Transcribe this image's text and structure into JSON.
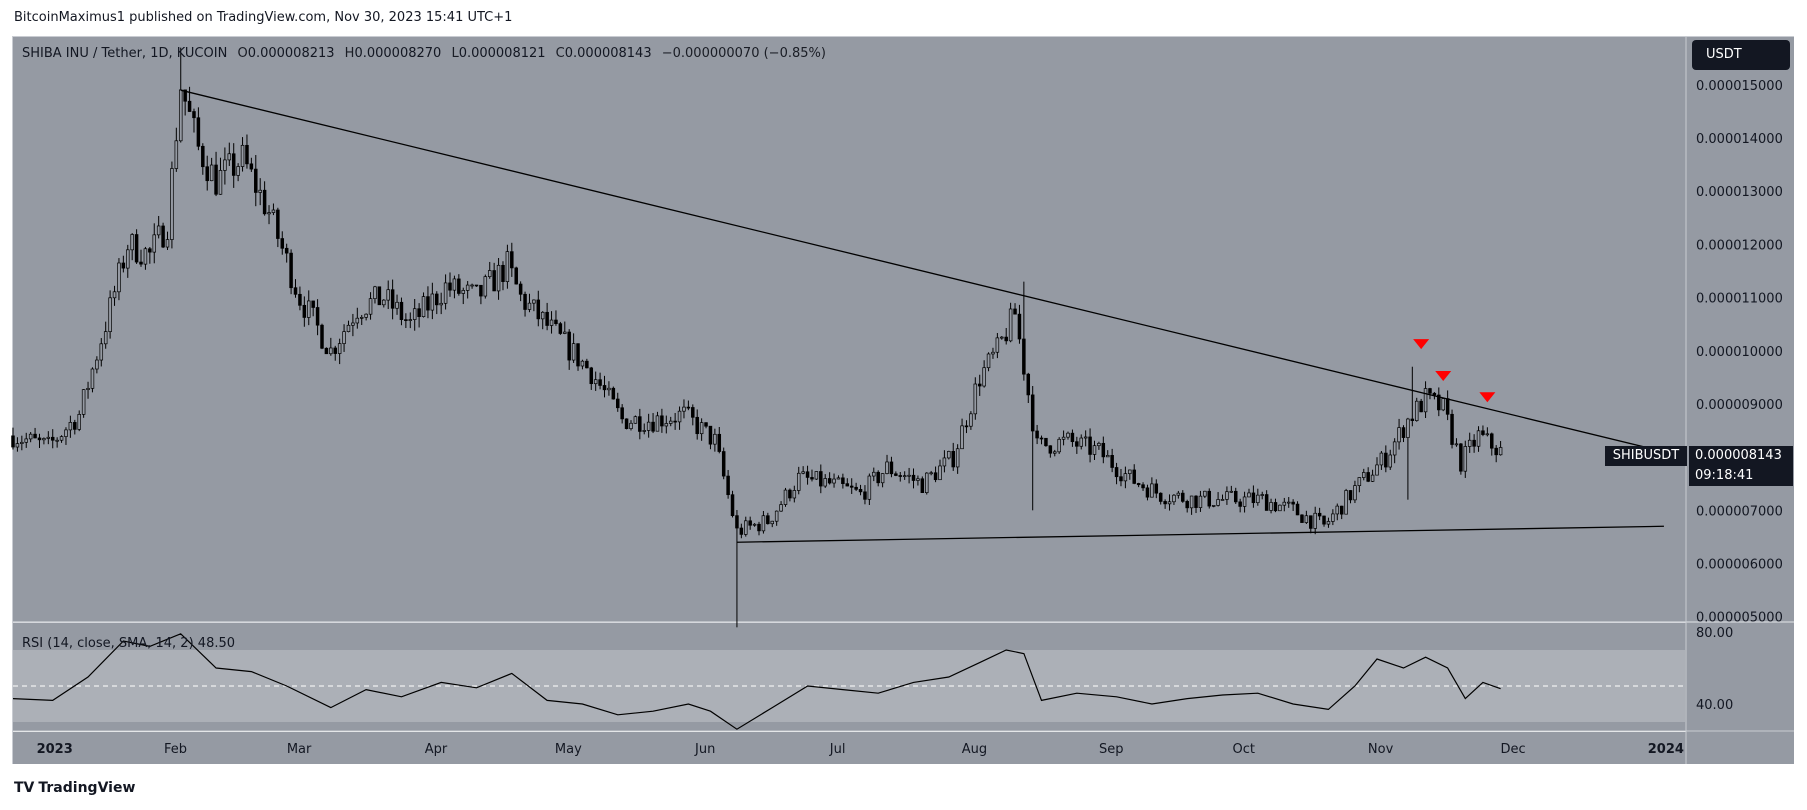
{
  "header": {
    "attribution": "BitcoinMaximus1 published on TradingView.com, Nov 30, 2023 15:41 UTC+1"
  },
  "legend": {
    "symbol": "SHIBA INU / Tether, 1D, KUCOIN",
    "open_label": "O",
    "open": "0.000008213",
    "high_label": "H",
    "high": "0.000008270",
    "low_label": "L",
    "low": "0.000008121",
    "close_label": "C",
    "close": "0.000008143",
    "change": "−0.000000070 (−0.85%)"
  },
  "currency_button": "USDT",
  "price_tag": {
    "symbol": "SHIBUSDT",
    "value": "0.000008143",
    "countdown": "09:18:41"
  },
  "rsi": {
    "label": "RSI (14, close, SMA, 14, 2)",
    "value": "48.50"
  },
  "footer": {
    "brand": "TradingView",
    "logo": "TV"
  },
  "colors": {
    "pane_bg": "#959aa3",
    "candle": "#000000",
    "marker": "#ff0000",
    "rsi_band": "#b0b4bb",
    "text": "#131722"
  },
  "chart_data": {
    "type": "candlestick",
    "title": "SHIBA INU / Tether, 1D, KUCOIN",
    "price_axis": {
      "ticks": [
        "0.000015000",
        "0.000014000",
        "0.000013000",
        "0.000012000",
        "0.000011000",
        "0.000010000",
        "0.000009000",
        "0.000008000",
        "0.000007000",
        "0.000006000",
        "0.000005000"
      ],
      "tick_values": [
        1.5e-05,
        1.4e-05,
        1.3e-05,
        1.2e-05,
        1.1e-05,
        1e-05,
        9e-06,
        8e-06,
        7e-06,
        6e-06,
        5e-06
      ],
      "range": [
        4.9e-06,
        1.59e-05
      ]
    },
    "time_axis": {
      "labels": [
        "2023",
        "Feb",
        "Mar",
        "Apr",
        "May",
        "Jun",
        "Jul",
        "Aug",
        "Sep",
        "Oct",
        "Nov",
        "Dec",
        "2024"
      ],
      "label_dates": [
        "2023-01-01",
        "2023-02-01",
        "2023-03-01",
        "2023-04-01",
        "2023-05-01",
        "2023-06-01",
        "2023-07-01",
        "2023-08-01",
        "2023-09-01",
        "2023-10-01",
        "2023-11-01",
        "2023-12-01",
        "2024-01-01"
      ],
      "range": [
        "2022-12-28",
        "2024-01-11"
      ]
    },
    "close_series": [
      [
        "2022-12-28",
        8.4e-06
      ],
      [
        "2023-01-05",
        8.2e-06
      ],
      [
        "2023-01-12",
        8.8e-06
      ],
      [
        "2023-01-18",
        1.05e-05
      ],
      [
        "2023-01-23",
        1.2e-05
      ],
      [
        "2023-01-28",
        1.18e-05
      ],
      [
        "2023-02-01",
        1.24e-05
      ],
      [
        "2023-02-04",
        1.5e-05
      ],
      [
        "2023-02-08",
        1.38e-05
      ],
      [
        "2023-02-12",
        1.32e-05
      ],
      [
        "2023-02-18",
        1.36e-05
      ],
      [
        "2023-02-24",
        1.26e-05
      ],
      [
        "2023-03-03",
        1.1e-05
      ],
      [
        "2023-03-10",
        1e-05
      ],
      [
        "2023-03-16",
        1.08e-05
      ],
      [
        "2023-03-22",
        1.1e-05
      ],
      [
        "2023-03-28",
        1.05e-05
      ],
      [
        "2023-04-05",
        1.12e-05
      ],
      [
        "2023-04-12",
        1.1e-05
      ],
      [
        "2023-04-19",
        1.16e-05
      ],
      [
        "2023-04-22",
        1.1e-05
      ],
      [
        "2023-04-30",
        1.03e-05
      ],
      [
        "2023-05-08",
        9.6e-06
      ],
      [
        "2023-05-15",
        8.7e-06
      ],
      [
        "2023-05-22",
        8.7e-06
      ],
      [
        "2023-05-29",
        8.8e-06
      ],
      [
        "2023-06-05",
        8.3e-06
      ],
      [
        "2023-06-10",
        6.6e-06
      ],
      [
        "2023-06-17",
        6.8e-06
      ],
      [
        "2023-06-24",
        7.6e-06
      ],
      [
        "2023-07-01",
        7.5e-06
      ],
      [
        "2023-07-08",
        7.3e-06
      ],
      [
        "2023-07-14",
        7.8e-06
      ],
      [
        "2023-07-22",
        7.5e-06
      ],
      [
        "2023-07-29",
        8e-06
      ],
      [
        "2023-08-04",
        9.5e-06
      ],
      [
        "2023-08-08",
        1e-05
      ],
      [
        "2023-08-12",
        1.07e-05
      ],
      [
        "2023-08-17",
        8.2e-06
      ],
      [
        "2023-08-24",
        8.3e-06
      ],
      [
        "2023-08-31",
        8.1e-06
      ],
      [
        "2023-09-07",
        7.6e-06
      ],
      [
        "2023-09-14",
        7.3e-06
      ],
      [
        "2023-09-22",
        7.2e-06
      ],
      [
        "2023-09-30",
        7.2e-06
      ],
      [
        "2023-10-07",
        7.2e-06
      ],
      [
        "2023-10-14",
        7e-06
      ],
      [
        "2023-10-21",
        6.7e-06
      ],
      [
        "2023-10-28",
        7.4e-06
      ],
      [
        "2023-11-04",
        8e-06
      ],
      [
        "2023-11-09",
        8.7e-06
      ],
      [
        "2023-11-13",
        9.1e-06
      ],
      [
        "2023-11-17",
        8.9e-06
      ],
      [
        "2023-11-21",
        7.9e-06
      ],
      [
        "2023-11-25",
        8.4e-06
      ],
      [
        "2023-11-30",
        8.1e-06
      ]
    ],
    "extreme_wicks": [
      {
        "date": "2023-02-04",
        "high": 1.57e-05
      },
      {
        "date": "2023-06-10",
        "low": 4.8e-06
      },
      {
        "date": "2023-08-14",
        "high": 1.13e-05
      },
      {
        "date": "2023-08-16",
        "low": 7e-06
      },
      {
        "date": "2023-11-10",
        "high": 9.7e-06
      },
      {
        "date": "2023-11-09",
        "low": 7.2e-06
      }
    ],
    "trendlines": [
      {
        "name": "descending resistance",
        "from": [
          "2023-02-04",
          1.49e-05
        ],
        "to": [
          "2024-01-11",
          8e-06
        ]
      },
      {
        "name": "ascending support",
        "from": [
          "2023-06-10",
          6.4e-06
        ],
        "to": [
          "2024-01-06",
          6.7e-06
        ]
      }
    ],
    "markers": [
      {
        "date": "2023-11-12",
        "price": 9.9e-06,
        "shape": "down-triangle"
      },
      {
        "date": "2023-11-17",
        "price": 9.3e-06,
        "shape": "down-triangle"
      },
      {
        "date": "2023-11-27",
        "price": 8.9e-06,
        "shape": "down-triangle"
      }
    ],
    "rsi_panel": {
      "ticks": [
        "80.00",
        "40.00"
      ],
      "tick_values": [
        80,
        40
      ],
      "range": [
        25,
        85
      ],
      "band": [
        30,
        70
      ],
      "midline": 50,
      "series": [
        [
          "2022-12-28",
          43
        ],
        [
          "2023-01-06",
          42
        ],
        [
          "2023-01-14",
          55
        ],
        [
          "2023-01-22",
          75
        ],
        [
          "2023-01-28",
          72
        ],
        [
          "2023-02-04",
          79
        ],
        [
          "2023-02-12",
          60
        ],
        [
          "2023-02-20",
          58
        ],
        [
          "2023-02-28",
          50
        ],
        [
          "2023-03-10",
          38
        ],
        [
          "2023-03-18",
          48
        ],
        [
          "2023-03-26",
          44
        ],
        [
          "2023-04-04",
          52
        ],
        [
          "2023-04-12",
          49
        ],
        [
          "2023-04-20",
          57
        ],
        [
          "2023-04-28",
          42
        ],
        [
          "2023-05-06",
          40
        ],
        [
          "2023-05-14",
          34
        ],
        [
          "2023-05-22",
          36
        ],
        [
          "2023-05-30",
          40
        ],
        [
          "2023-06-04",
          36
        ],
        [
          "2023-06-10",
          26
        ],
        [
          "2023-06-18",
          38
        ],
        [
          "2023-06-26",
          50
        ],
        [
          "2023-07-04",
          48
        ],
        [
          "2023-07-12",
          46
        ],
        [
          "2023-07-20",
          52
        ],
        [
          "2023-07-28",
          55
        ],
        [
          "2023-08-04",
          63
        ],
        [
          "2023-08-10",
          70
        ],
        [
          "2023-08-14",
          68
        ],
        [
          "2023-08-18",
          42
        ],
        [
          "2023-08-26",
          46
        ],
        [
          "2023-09-04",
          44
        ],
        [
          "2023-09-12",
          40
        ],
        [
          "2023-09-20",
          43
        ],
        [
          "2023-09-28",
          45
        ],
        [
          "2023-10-06",
          46
        ],
        [
          "2023-10-14",
          40
        ],
        [
          "2023-10-22",
          37
        ],
        [
          "2023-10-28",
          50
        ],
        [
          "2023-11-02",
          65
        ],
        [
          "2023-11-08",
          60
        ],
        [
          "2023-11-13",
          66
        ],
        [
          "2023-11-18",
          60
        ],
        [
          "2023-11-22",
          43
        ],
        [
          "2023-11-26",
          52
        ],
        [
          "2023-11-30",
          48.5
        ]
      ]
    }
  }
}
